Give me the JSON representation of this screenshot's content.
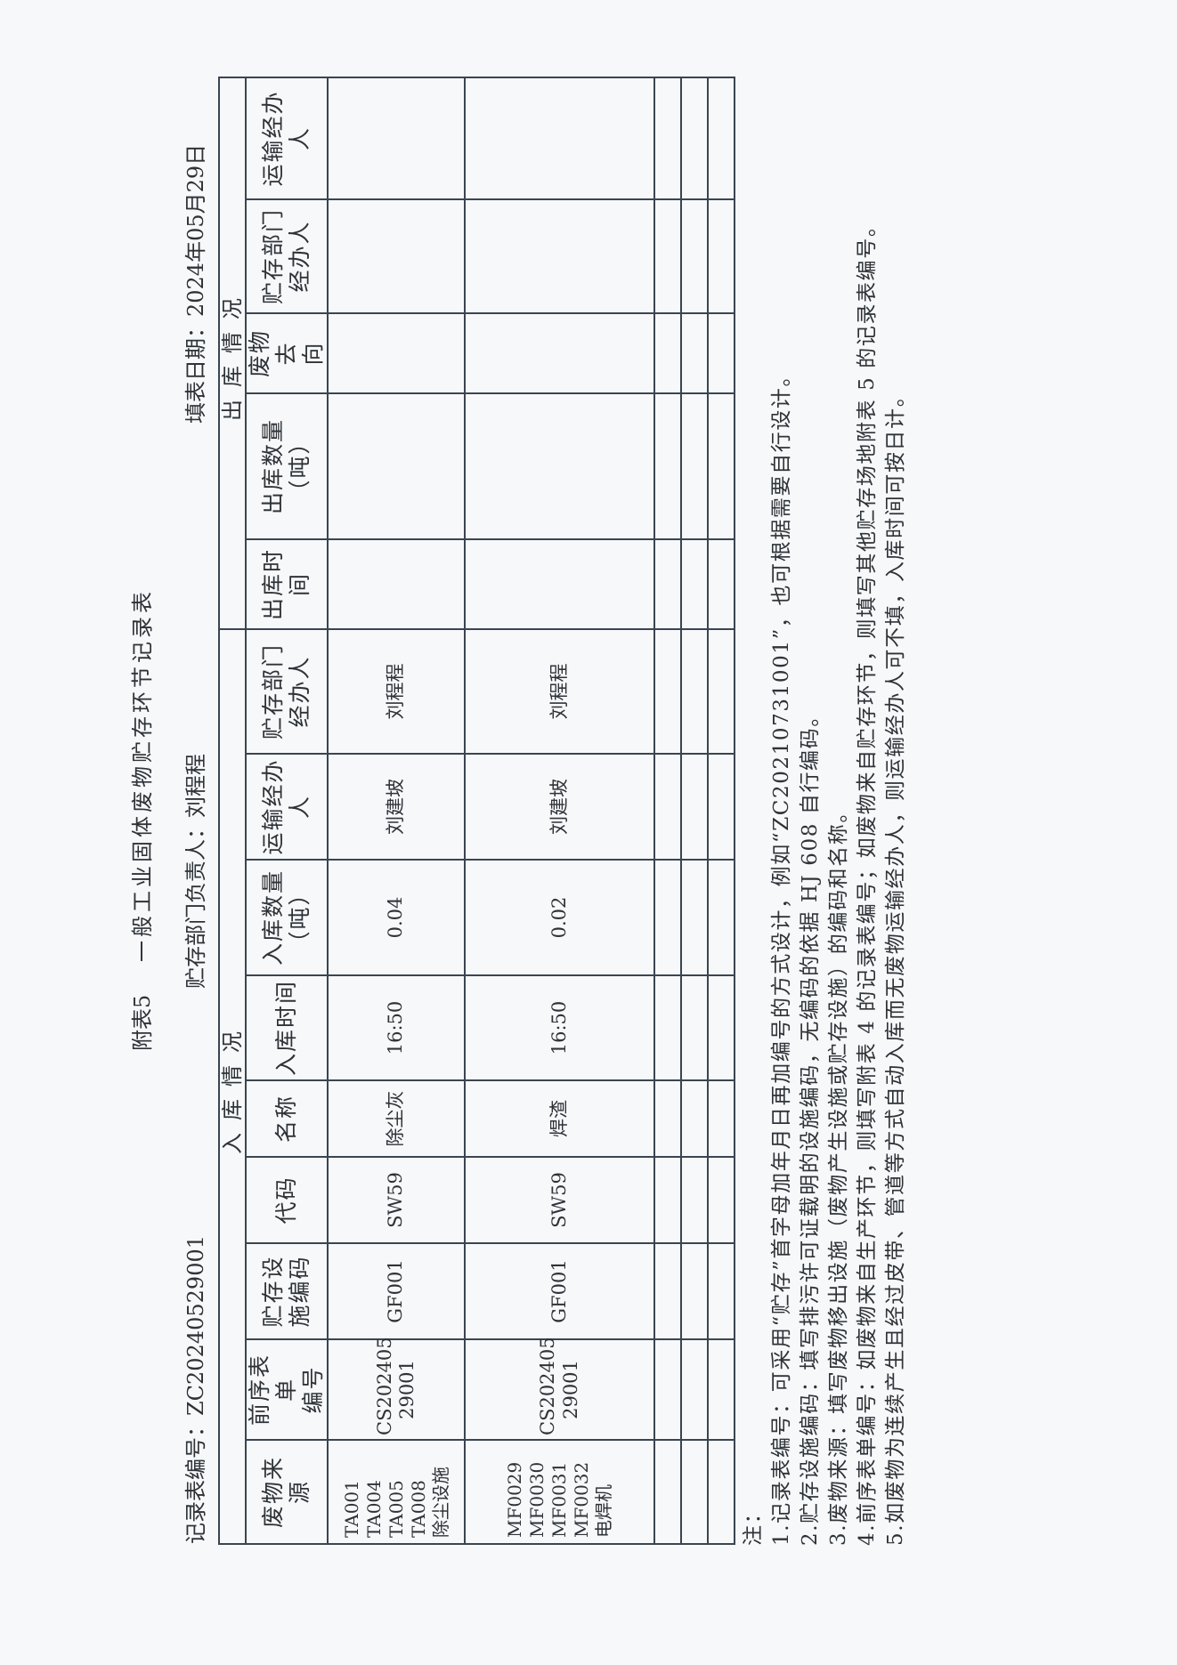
{
  "header": {
    "appendix": "附表5",
    "title": "一般工业固体废物贮存环节记录表",
    "record_no": "记录表编号：ZC20240529001",
    "manager": "贮存部门负责人：刘程程",
    "date": "填表日期：2024年05月29日"
  },
  "table": {
    "groups": [
      "入库情况",
      "出库情况"
    ],
    "columns": [
      "废物来源",
      "前序表单\n编号",
      "贮存设\n施编码",
      "代码",
      "名称",
      "入库时间",
      "入库数量\n（吨）",
      "运输经办\n人",
      "贮存部门\n经办人",
      "出库时\n间",
      "出库数量\n（吨）",
      "废物去\n向",
      "贮存部门\n经办人",
      "运输经办\n人"
    ],
    "rows": [
      [
        "TA001\nTA004\nTA005\nTA008\n除尘设施",
        "CS202405\n29001",
        "GF001",
        "SW59",
        "除尘灰",
        "16:50",
        "0.04",
        "刘建坡",
        "刘程程",
        "",
        "",
        "",
        "",
        ""
      ],
      [
        "MF0029\nMF0030\nMF0031\nMF0032\n电焊机",
        "CS202405\n29001",
        "GF001",
        "SW59",
        "焊渣",
        "16:50",
        "0.02",
        "刘建坡",
        "刘程程",
        "",
        "",
        "",
        "",
        ""
      ],
      [
        "",
        "",
        "",
        "",
        "",
        "",
        "",
        "",
        "",
        "",
        "",
        "",
        "",
        ""
      ],
      [
        "",
        "",
        "",
        "",
        "",
        "",
        "",
        "",
        "",
        "",
        "",
        "",
        "",
        ""
      ],
      [
        "",
        "",
        "",
        "",
        "",
        "",
        "",
        "",
        "",
        "",
        "",
        "",
        "",
        ""
      ]
    ]
  },
  "notes": {
    "label": "注：",
    "items": [
      "1.记录表编号：可采用“贮存”首字母加年月日再加编号的方式设计，例如“ZC20210731001”，也可根据需要自行设计。",
      "2.贮存设施编码：填写排污许可证载明的设施编码，无编码的依据 HJ 608 自行编码。",
      "3.废物来源：填写废物移出设施（废物产生设施或贮存设施）的编码和名称。",
      "4.前序表单编号：如废物来自生产环节，则填写附表 4 的记录表编号；如废物来自贮存环节，则填写其他贮存场地附表 5 的记录表编号。",
      "5.如废物为连续产生且经过皮带、管道等方式自动入库而无废物运输经办人，则运输经办人可不填，入库时间可按日计。"
    ]
  }
}
